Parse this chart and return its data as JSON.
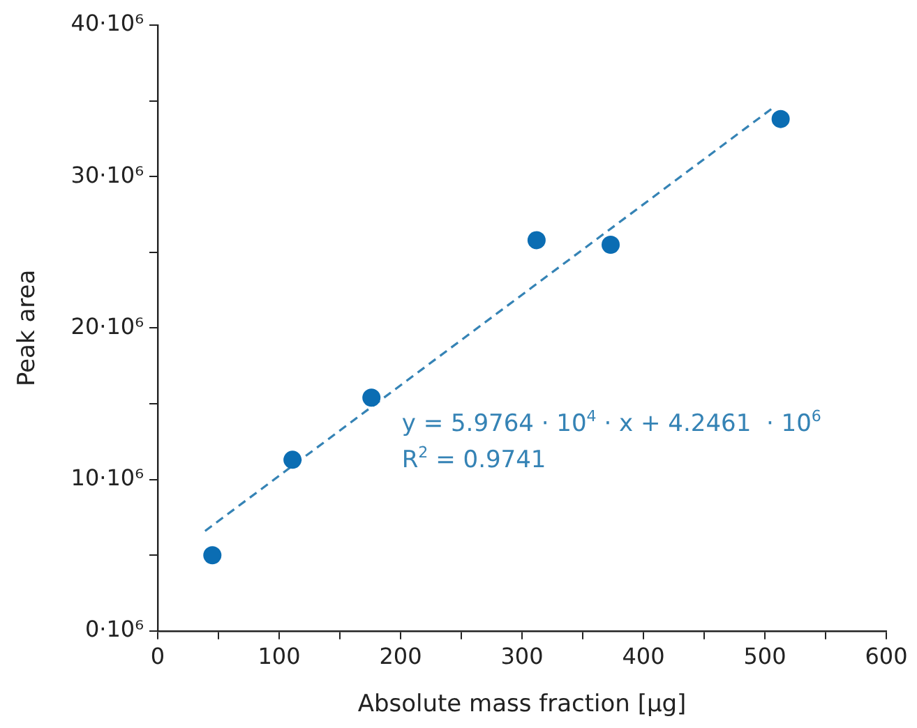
{
  "chart_data": {
    "type": "scatter",
    "xlabel": "Absolute mass fraction [µg]",
    "ylabel": "Peak area",
    "xlim": [
      0,
      600
    ],
    "xticks": [
      0,
      {
        "value": 50,
        "label": null
      },
      100,
      {
        "value": 150,
        "label": null
      },
      200,
      {
        "value": 250,
        "label": null
      },
      300,
      {
        "value": 350,
        "label": null
      },
      400,
      {
        "value": 450,
        "label": null
      },
      500,
      {
        "value": 550,
        "label": null
      },
      600
    ],
    "ylim": [
      0,
      40000000
    ],
    "yticks": [
      {
        "value": 0,
        "label": "0·10⁶"
      },
      {
        "value": 5000000,
        "label": null
      },
      {
        "value": 10000000,
        "label": "10·10⁶"
      },
      {
        "value": 15000000,
        "label": null
      },
      {
        "value": 20000000,
        "label": "20·10⁶"
      },
      {
        "value": 25000000,
        "label": null
      },
      {
        "value": 30000000,
        "label": "30·10⁶"
      },
      {
        "value": 35000000,
        "label": null
      },
      {
        "value": 40000000,
        "label": "40·10⁶"
      }
    ],
    "grid": false,
    "legend": false,
    "series": [
      {
        "type": "scatter",
        "color": "#0b6db3",
        "marker": "circle",
        "x": [
          45,
          111,
          176,
          312,
          373,
          513
        ],
        "values": [
          5000000,
          11300000,
          15400000,
          25800000,
          25500000,
          33800000
        ]
      },
      {
        "type": "line",
        "color": "#3583b5",
        "marker": "none",
        "line_style": "dashed",
        "x": [
          39,
          506
        ],
        "values": [
          6600000,
          34500000
        ]
      }
    ],
    "annotations": [
      "y = 5.9764 · 10$^{4}$ · x + 4.2461  · 10$^{6}$",
      "R$^{2}$ = 0.9741"
    ]
  }
}
